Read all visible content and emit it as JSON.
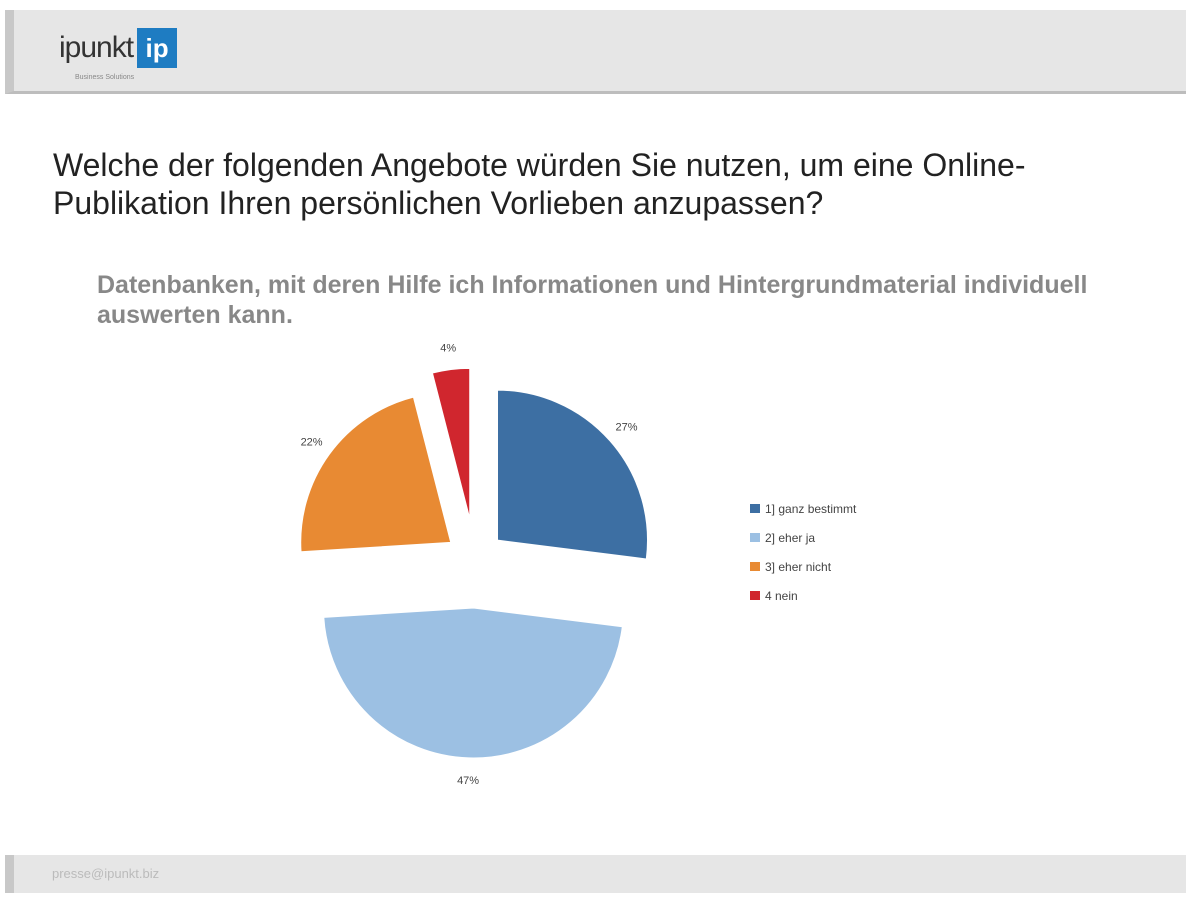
{
  "header": {
    "logo_text": "ipunkt",
    "logo_mark": "ip",
    "logo_sub": "Business Solutions"
  },
  "title": "Welche der folgenden Angebote würden Sie nutzen, um eine Online-Publikation Ihren persönlichen Vorlieben anzupassen?",
  "subtitle": "Datenbanken, mit deren Hilfe ich Informationen und Hintergrundmaterial individuell auswerten kann.",
  "chart_data": {
    "type": "pie",
    "exploded": true,
    "legend_position": "right",
    "categories": [
      "1] ganz bestimmt",
      "2] eher ja",
      "3] eher nicht",
      "4  nein"
    ],
    "values": [
      27,
      47,
      22,
      4
    ],
    "data_labels": [
      "27%",
      "47%",
      "22%",
      "4%"
    ],
    "colors": [
      "#3d6fa3",
      "#9cc0e3",
      "#e88a33",
      "#d0262e"
    ]
  },
  "footer": {
    "email": "presse@ipunkt.biz"
  }
}
